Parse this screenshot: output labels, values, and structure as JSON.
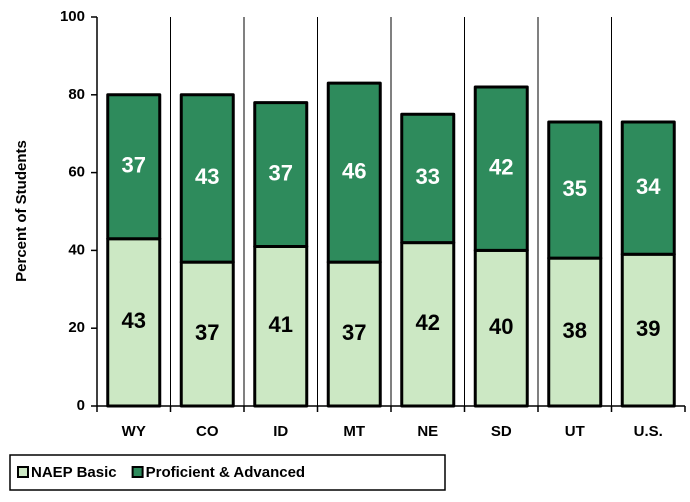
{
  "chart_data": {
    "type": "stacked_bar",
    "y_label": "Percent of Students",
    "categories": [
      "WY",
      "CO",
      "ID",
      "MT",
      "NE",
      "SD",
      "UT",
      "U.S."
    ],
    "series": [
      {
        "name": "NAEP Basic",
        "color": "#cce8c4",
        "values": [
          43,
          37,
          41,
          37,
          42,
          40,
          38,
          39
        ]
      },
      {
        "name": "Proficient & Advanced",
        "color": "#2e8b5c",
        "values": [
          37,
          43,
          37,
          46,
          33,
          42,
          35,
          34
        ]
      }
    ],
    "ylim": [
      0,
      100
    ],
    "yticks": [
      0,
      20,
      40,
      60,
      80,
      100
    ],
    "legend": "bottom-left"
  }
}
